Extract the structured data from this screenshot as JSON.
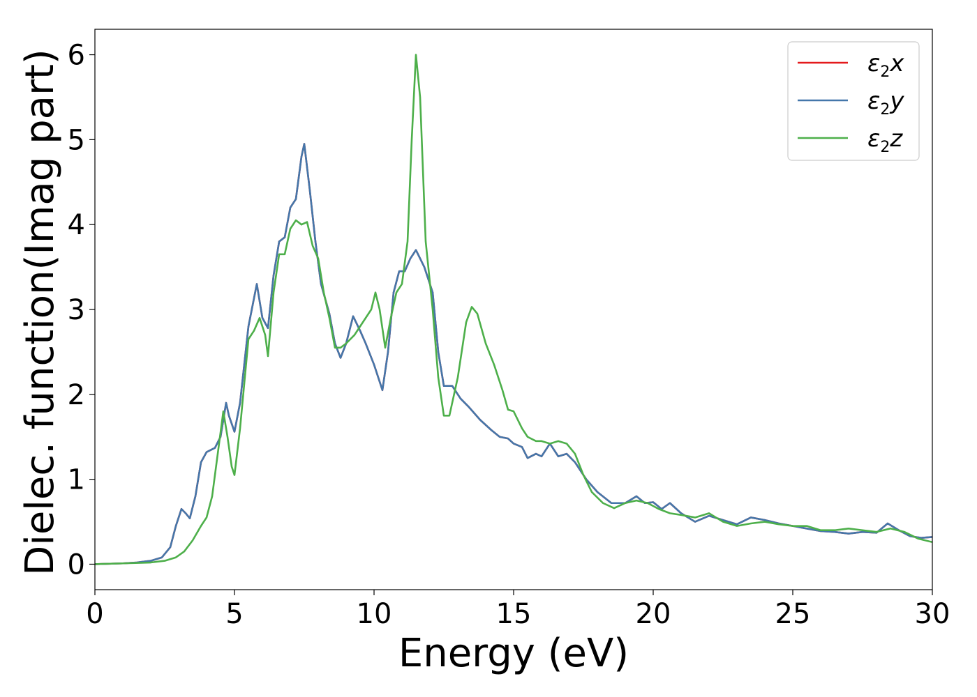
{
  "chart_data": {
    "type": "line",
    "xlabel": "Energy (eV)",
    "ylabel": "Dielec. function(Imag part)",
    "xlim": [
      0,
      30
    ],
    "ylim": [
      -0.3,
      6.3
    ],
    "x_ticks": [
      0,
      5,
      10,
      15,
      20,
      25,
      30
    ],
    "y_ticks": [
      0,
      1,
      2,
      3,
      4,
      5,
      6
    ],
    "grid": false,
    "legend_position": "top-right",
    "series": [
      {
        "name": "ε2x",
        "legend": {
          "base": "ε",
          "sub": "2",
          "var": "x"
        },
        "color": "#e41a1c",
        "points": [
          [
            0,
            0
          ],
          [
            1,
            0.01
          ],
          [
            1.5,
            0.02
          ],
          [
            2,
            0.04
          ],
          [
            2.4,
            0.08
          ],
          [
            2.7,
            0.2
          ],
          [
            2.9,
            0.45
          ],
          [
            3.1,
            0.65
          ],
          [
            3.25,
            0.6
          ],
          [
            3.4,
            0.54
          ],
          [
            3.6,
            0.8
          ],
          [
            3.8,
            1.2
          ],
          [
            4.0,
            1.32
          ],
          [
            4.3,
            1.37
          ],
          [
            4.5,
            1.5
          ],
          [
            4.7,
            1.9
          ],
          [
            4.8,
            1.75
          ],
          [
            5.0,
            1.56
          ],
          [
            5.2,
            1.9
          ],
          [
            5.5,
            2.8
          ],
          [
            5.8,
            3.3
          ],
          [
            6.0,
            2.9
          ],
          [
            6.2,
            2.78
          ],
          [
            6.4,
            3.4
          ],
          [
            6.6,
            3.8
          ],
          [
            6.8,
            3.85
          ],
          [
            7.0,
            4.2
          ],
          [
            7.2,
            4.3
          ],
          [
            7.4,
            4.8
          ],
          [
            7.5,
            4.95
          ],
          [
            7.7,
            4.4
          ],
          [
            7.9,
            3.8
          ],
          [
            8.1,
            3.3
          ],
          [
            8.4,
            2.95
          ],
          [
            8.6,
            2.6
          ],
          [
            8.8,
            2.43
          ],
          [
            9.0,
            2.6
          ],
          [
            9.25,
            2.92
          ],
          [
            9.5,
            2.75
          ],
          [
            9.7,
            2.6
          ],
          [
            10.0,
            2.35
          ],
          [
            10.3,
            2.05
          ],
          [
            10.5,
            2.5
          ],
          [
            10.7,
            3.2
          ],
          [
            10.9,
            3.45
          ],
          [
            11.1,
            3.45
          ],
          [
            11.3,
            3.6
          ],
          [
            11.5,
            3.7
          ],
          [
            11.8,
            3.5
          ],
          [
            12.1,
            3.2
          ],
          [
            12.3,
            2.5
          ],
          [
            12.5,
            2.1
          ],
          [
            12.8,
            2.1
          ],
          [
            13.1,
            1.95
          ],
          [
            13.4,
            1.85
          ],
          [
            13.8,
            1.7
          ],
          [
            14.2,
            1.58
          ],
          [
            14.5,
            1.5
          ],
          [
            14.8,
            1.48
          ],
          [
            15.0,
            1.42
          ],
          [
            15.3,
            1.38
          ],
          [
            15.5,
            1.25
          ],
          [
            15.8,
            1.3
          ],
          [
            16.0,
            1.27
          ],
          [
            16.3,
            1.42
          ],
          [
            16.6,
            1.27
          ],
          [
            16.9,
            1.3
          ],
          [
            17.2,
            1.2
          ],
          [
            17.6,
            1.0
          ],
          [
            18.0,
            0.85
          ],
          [
            18.5,
            0.72
          ],
          [
            19.0,
            0.72
          ],
          [
            19.4,
            0.8
          ],
          [
            19.7,
            0.72
          ],
          [
            20.0,
            0.73
          ],
          [
            20.3,
            0.65
          ],
          [
            20.6,
            0.72
          ],
          [
            21.0,
            0.6
          ],
          [
            21.5,
            0.5
          ],
          [
            22.0,
            0.57
          ],
          [
            22.5,
            0.52
          ],
          [
            23.0,
            0.47
          ],
          [
            23.5,
            0.55
          ],
          [
            24.0,
            0.52
          ],
          [
            24.5,
            0.48
          ],
          [
            25.0,
            0.45
          ],
          [
            25.5,
            0.42
          ],
          [
            26.0,
            0.39
          ],
          [
            26.5,
            0.38
          ],
          [
            27.0,
            0.36
          ],
          [
            27.5,
            0.38
          ],
          [
            28.0,
            0.37
          ],
          [
            28.4,
            0.48
          ],
          [
            28.8,
            0.4
          ],
          [
            29.2,
            0.33
          ],
          [
            29.6,
            0.31
          ],
          [
            30.0,
            0.32
          ]
        ]
      },
      {
        "name": "ε2y",
        "legend": {
          "base": "ε",
          "sub": "2",
          "var": "y"
        },
        "color": "#4477aa",
        "points": [
          [
            0,
            0
          ],
          [
            1,
            0.01
          ],
          [
            1.5,
            0.02
          ],
          [
            2,
            0.04
          ],
          [
            2.4,
            0.08
          ],
          [
            2.7,
            0.2
          ],
          [
            2.9,
            0.45
          ],
          [
            3.1,
            0.65
          ],
          [
            3.25,
            0.6
          ],
          [
            3.4,
            0.54
          ],
          [
            3.6,
            0.8
          ],
          [
            3.8,
            1.2
          ],
          [
            4.0,
            1.32
          ],
          [
            4.3,
            1.37
          ],
          [
            4.5,
            1.5
          ],
          [
            4.7,
            1.9
          ],
          [
            4.8,
            1.75
          ],
          [
            5.0,
            1.56
          ],
          [
            5.2,
            1.9
          ],
          [
            5.5,
            2.8
          ],
          [
            5.8,
            3.3
          ],
          [
            6.0,
            2.9
          ],
          [
            6.2,
            2.78
          ],
          [
            6.4,
            3.4
          ],
          [
            6.6,
            3.8
          ],
          [
            6.8,
            3.85
          ],
          [
            7.0,
            4.2
          ],
          [
            7.2,
            4.3
          ],
          [
            7.4,
            4.8
          ],
          [
            7.5,
            4.95
          ],
          [
            7.7,
            4.4
          ],
          [
            7.9,
            3.8
          ],
          [
            8.1,
            3.3
          ],
          [
            8.4,
            2.95
          ],
          [
            8.6,
            2.6
          ],
          [
            8.8,
            2.43
          ],
          [
            9.0,
            2.6
          ],
          [
            9.25,
            2.92
          ],
          [
            9.5,
            2.75
          ],
          [
            9.7,
            2.6
          ],
          [
            10.0,
            2.35
          ],
          [
            10.3,
            2.05
          ],
          [
            10.5,
            2.5
          ],
          [
            10.7,
            3.2
          ],
          [
            10.9,
            3.45
          ],
          [
            11.1,
            3.45
          ],
          [
            11.3,
            3.6
          ],
          [
            11.5,
            3.7
          ],
          [
            11.8,
            3.5
          ],
          [
            12.1,
            3.2
          ],
          [
            12.3,
            2.5
          ],
          [
            12.5,
            2.1
          ],
          [
            12.8,
            2.1
          ],
          [
            13.1,
            1.95
          ],
          [
            13.4,
            1.85
          ],
          [
            13.8,
            1.7
          ],
          [
            14.2,
            1.58
          ],
          [
            14.5,
            1.5
          ],
          [
            14.8,
            1.48
          ],
          [
            15.0,
            1.42
          ],
          [
            15.3,
            1.38
          ],
          [
            15.5,
            1.25
          ],
          [
            15.8,
            1.3
          ],
          [
            16.0,
            1.27
          ],
          [
            16.3,
            1.42
          ],
          [
            16.6,
            1.27
          ],
          [
            16.9,
            1.3
          ],
          [
            17.2,
            1.2
          ],
          [
            17.6,
            1.0
          ],
          [
            18.0,
            0.85
          ],
          [
            18.5,
            0.72
          ],
          [
            19.0,
            0.72
          ],
          [
            19.4,
            0.8
          ],
          [
            19.7,
            0.72
          ],
          [
            20.0,
            0.73
          ],
          [
            20.3,
            0.65
          ],
          [
            20.6,
            0.72
          ],
          [
            21.0,
            0.6
          ],
          [
            21.5,
            0.5
          ],
          [
            22.0,
            0.57
          ],
          [
            22.5,
            0.52
          ],
          [
            23.0,
            0.47
          ],
          [
            23.5,
            0.55
          ],
          [
            24.0,
            0.52
          ],
          [
            24.5,
            0.48
          ],
          [
            25.0,
            0.45
          ],
          [
            25.5,
            0.42
          ],
          [
            26.0,
            0.39
          ],
          [
            26.5,
            0.38
          ],
          [
            27.0,
            0.36
          ],
          [
            27.5,
            0.38
          ],
          [
            28.0,
            0.37
          ],
          [
            28.4,
            0.48
          ],
          [
            28.8,
            0.4
          ],
          [
            29.2,
            0.33
          ],
          [
            29.6,
            0.31
          ],
          [
            30.0,
            0.32
          ]
        ]
      },
      {
        "name": "ε2z",
        "legend": {
          "base": "ε",
          "sub": "2",
          "var": "z"
        },
        "color": "#4daf4a",
        "points": [
          [
            0,
            0
          ],
          [
            1,
            0.01
          ],
          [
            2,
            0.02
          ],
          [
            2.5,
            0.04
          ],
          [
            2.9,
            0.08
          ],
          [
            3.2,
            0.15
          ],
          [
            3.5,
            0.28
          ],
          [
            3.8,
            0.45
          ],
          [
            4.0,
            0.55
          ],
          [
            4.2,
            0.8
          ],
          [
            4.4,
            1.3
          ],
          [
            4.6,
            1.8
          ],
          [
            4.75,
            1.5
          ],
          [
            4.9,
            1.15
          ],
          [
            5.0,
            1.05
          ],
          [
            5.2,
            1.6
          ],
          [
            5.5,
            2.65
          ],
          [
            5.7,
            2.75
          ],
          [
            5.9,
            2.9
          ],
          [
            6.1,
            2.7
          ],
          [
            6.2,
            2.45
          ],
          [
            6.4,
            3.2
          ],
          [
            6.6,
            3.65
          ],
          [
            6.8,
            3.65
          ],
          [
            7.0,
            3.95
          ],
          [
            7.2,
            4.05
          ],
          [
            7.4,
            4.0
          ],
          [
            7.6,
            4.03
          ],
          [
            7.8,
            3.75
          ],
          [
            8.0,
            3.6
          ],
          [
            8.2,
            3.2
          ],
          [
            8.4,
            2.9
          ],
          [
            8.6,
            2.55
          ],
          [
            8.8,
            2.55
          ],
          [
            9.0,
            2.6
          ],
          [
            9.3,
            2.7
          ],
          [
            9.6,
            2.85
          ],
          [
            9.9,
            3.0
          ],
          [
            10.05,
            3.2
          ],
          [
            10.2,
            3.0
          ],
          [
            10.4,
            2.55
          ],
          [
            10.6,
            2.9
          ],
          [
            10.8,
            3.2
          ],
          [
            11.0,
            3.3
          ],
          [
            11.2,
            3.8
          ],
          [
            11.35,
            5.0
          ],
          [
            11.5,
            6.0
          ],
          [
            11.65,
            5.5
          ],
          [
            11.85,
            3.8
          ],
          [
            12.1,
            3.0
          ],
          [
            12.3,
            2.2
          ],
          [
            12.5,
            1.75
          ],
          [
            12.7,
            1.75
          ],
          [
            13.0,
            2.2
          ],
          [
            13.3,
            2.85
          ],
          [
            13.5,
            3.03
          ],
          [
            13.7,
            2.95
          ],
          [
            14.0,
            2.6
          ],
          [
            14.3,
            2.35
          ],
          [
            14.6,
            2.05
          ],
          [
            14.8,
            1.82
          ],
          [
            15.0,
            1.8
          ],
          [
            15.3,
            1.6
          ],
          [
            15.5,
            1.5
          ],
          [
            15.8,
            1.45
          ],
          [
            16.0,
            1.45
          ],
          [
            16.3,
            1.42
          ],
          [
            16.6,
            1.45
          ],
          [
            16.9,
            1.42
          ],
          [
            17.2,
            1.3
          ],
          [
            17.5,
            1.05
          ],
          [
            17.8,
            0.85
          ],
          [
            18.2,
            0.72
          ],
          [
            18.6,
            0.66
          ],
          [
            19.0,
            0.72
          ],
          [
            19.4,
            0.75
          ],
          [
            19.8,
            0.72
          ],
          [
            20.2,
            0.65
          ],
          [
            20.6,
            0.6
          ],
          [
            21.0,
            0.58
          ],
          [
            21.5,
            0.55
          ],
          [
            22.0,
            0.6
          ],
          [
            22.5,
            0.5
          ],
          [
            23.0,
            0.45
          ],
          [
            23.5,
            0.48
          ],
          [
            24.0,
            0.5
          ],
          [
            24.5,
            0.47
          ],
          [
            25.0,
            0.45
          ],
          [
            25.5,
            0.45
          ],
          [
            26.0,
            0.4
          ],
          [
            26.5,
            0.4
          ],
          [
            27.0,
            0.42
          ],
          [
            27.5,
            0.4
          ],
          [
            28.0,
            0.38
          ],
          [
            28.5,
            0.42
          ],
          [
            29.0,
            0.38
          ],
          [
            29.5,
            0.3
          ],
          [
            30.0,
            0.26
          ]
        ]
      }
    ]
  }
}
